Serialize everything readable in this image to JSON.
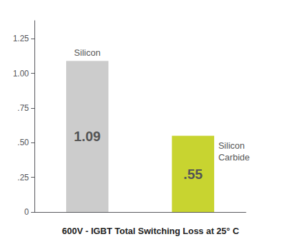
{
  "chart_data": {
    "type": "bar",
    "title": "600V - IGBT Total Switching Loss at 25° C",
    "categories": [
      "Silicon",
      "Silicon\nCarbide"
    ],
    "values": [
      1.09,
      0.55
    ],
    "value_labels": [
      "1.09",
      ".55"
    ],
    "data_labels": true,
    "colors": [
      "#cccccc",
      "#c8d430"
    ],
    "ylim": [
      0,
      1.38
    ],
    "yticks": [
      0,
      {
        "value": 0.25,
        "label": ".25"
      },
      {
        "value": 0.5,
        "label": ".50"
      },
      {
        "value": 0.75,
        "label": ".75"
      },
      {
        "value": 1.0,
        "label": "1.00"
      },
      {
        "value": 1.25,
        "label": "1.25"
      }
    ],
    "grid": false,
    "tick_labels": "y"
  }
}
